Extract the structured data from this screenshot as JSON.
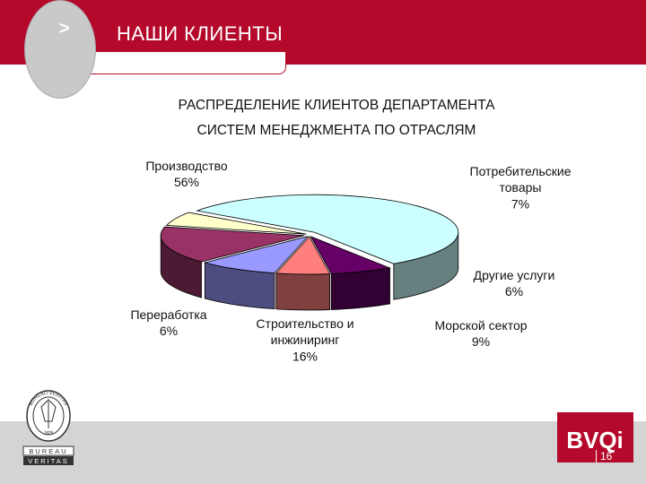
{
  "header": {
    "nav_arrow": ">",
    "title": "НАШИ КЛИЕНТЫ"
  },
  "chart_title": {
    "line1": "РАСПРЕДЕЛЕНИЕ КЛИЕНТОВ ДЕПАРТАМЕНТА",
    "line2": "СИСТЕМ МЕНЕДЖМЕНТА ПО ОТРАСЛЯМ"
  },
  "chart_data": {
    "type": "pie",
    "style": "3d-exploded",
    "title": "РАСПРЕДЕЛЕНИЕ КЛИЕНТОВ ДЕПАРТАМЕНТА СИСТЕМ МЕНЕДЖМЕНТА ПО ОТРАСЛЯМ",
    "legend": "none",
    "slices": [
      {
        "label_lines": [
          "Производство"
        ],
        "pct_label": "56%",
        "value": 56,
        "color": "#ccffff"
      },
      {
        "label_lines": [
          "Потребительские",
          "товары"
        ],
        "pct_label": "7%",
        "value": 7,
        "color": "#660066"
      },
      {
        "label_lines": [
          "Другие услуги"
        ],
        "pct_label": "6%",
        "value": 6,
        "color": "#ff7f7f"
      },
      {
        "label_lines": [
          "Морской сектор"
        ],
        "pct_label": "9%",
        "value": 9,
        "color": "#9999ff"
      },
      {
        "label_lines": [
          "Строительство и",
          "инжиниринг"
        ],
        "pct_label": "16%",
        "value": 16,
        "color": "#993366"
      },
      {
        "label_lines": [
          "Переработка"
        ],
        "pct_label": "6%",
        "value": 6,
        "color": "#ffffcc"
      }
    ]
  },
  "footer": {
    "logo_top_text": "BUREAU VERITAS",
    "logo_year": "1828",
    "logo_line1": "BUREAU",
    "logo_line2": "VERITAS",
    "brand": "BVQi",
    "page_number": "16"
  },
  "icons": {
    "logo": "bureau-veritas-seal-icon",
    "brand": "bvqi-logo-icon"
  }
}
